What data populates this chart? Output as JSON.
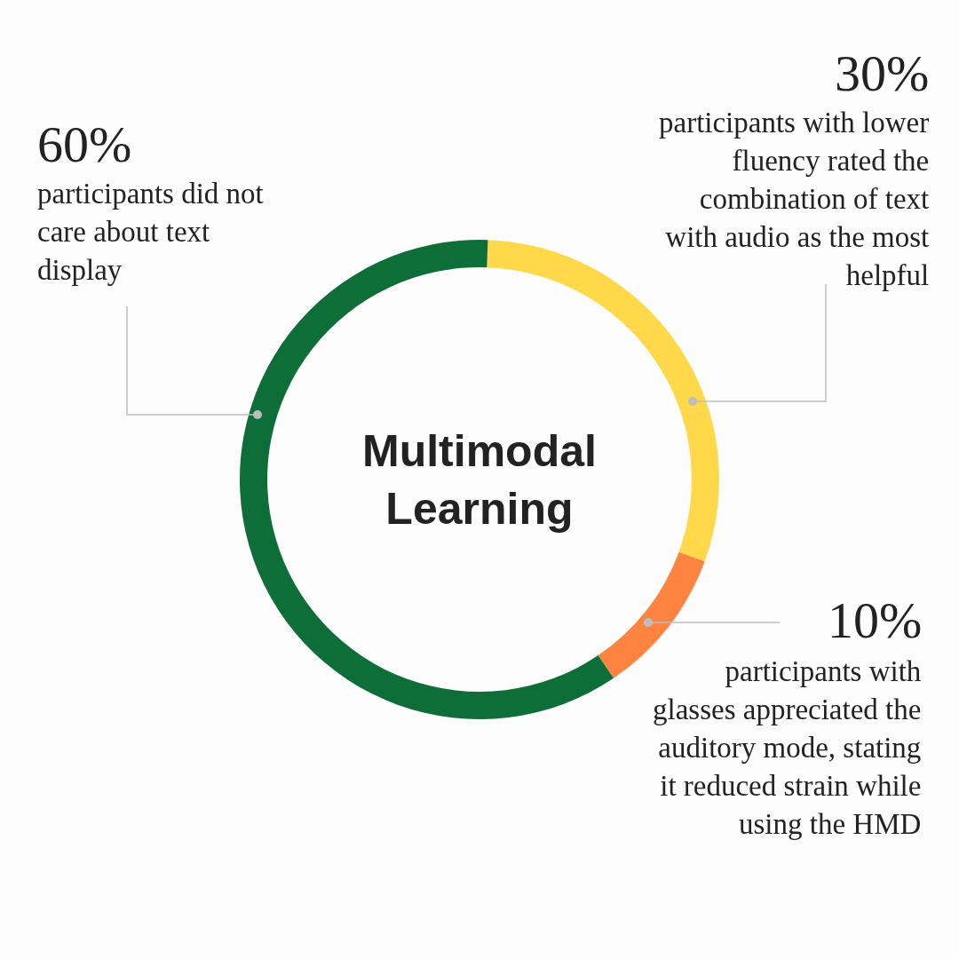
{
  "chart_data": {
    "type": "donut",
    "title": "Multimodal Learning",
    "categories": [
      "participants with lower fluency rated the combination of text with audio as the most helpful",
      "participants with glasses appreciated the auditory mode, stating it reduced strain while using the HMD",
      "participants did not care about text display"
    ],
    "values": [
      30,
      10,
      60
    ],
    "colors": [
      "#ffd94a",
      "#ff8442",
      "#0e6e38"
    ],
    "value_labels": [
      "30%",
      "10%",
      "60%"
    ]
  }
}
